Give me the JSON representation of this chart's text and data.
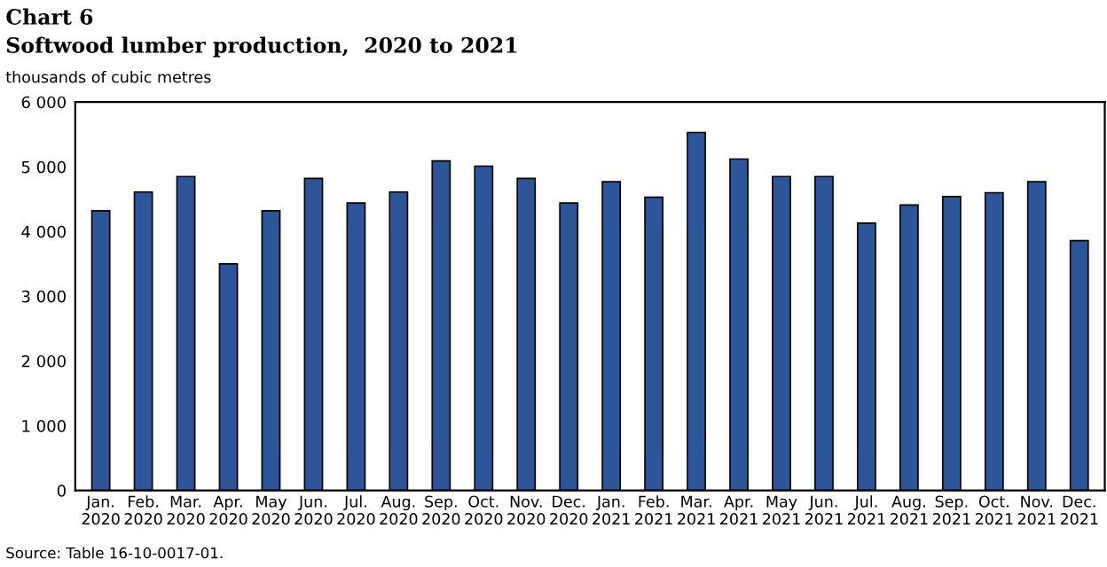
{
  "chart_data": {
    "type": "bar",
    "title": "Chart 6",
    "subtitle": "Softwood lumber production,  2020 to 2021",
    "ylabel": "thousands of cubic metres",
    "categories": [
      "Jan.\n2020",
      "Feb.\n2020",
      "Mar.\n2020",
      "Apr.\n2020",
      "May\n2020",
      "Jun.\n2020",
      "Jul.\n2020",
      "Aug.\n2020",
      "Sep.\n2020",
      "Oct.\n2020",
      "Nov.\n2020",
      "Dec.\n2020",
      "Jan.\n2021",
      "Feb.\n2021",
      "Mar.\n2021",
      "Apr.\n2021",
      "May\n2021",
      "Jun.\n2021",
      "Jul.\n2021",
      "Aug.\n2021",
      "Sep.\n2021",
      "Oct.\n2021",
      "Nov.\n2021",
      "Dec.\n2021"
    ],
    "values": [
      4320,
      4610,
      4850,
      3500,
      4320,
      4820,
      4440,
      4610,
      5090,
      5010,
      4820,
      4440,
      4770,
      4530,
      5530,
      5120,
      4850,
      4850,
      4130,
      4410,
      4540,
      4600,
      4770,
      3860
    ],
    "color": "#2e5597",
    "ylim": [
      0,
      6000
    ],
    "yticks": [
      0,
      {
        "value": 1000,
        "label": "1 000"
      },
      {
        "value": 2000,
        "label": "2 000"
      },
      {
        "value": 3000,
        "label": "3 000"
      },
      {
        "value": 4000,
        "label": "4 000"
      },
      {
        "value": 5000,
        "label": "5 000"
      },
      {
        "value": 6000,
        "label": "6 000"
      }
    ],
    "grid": false,
    "annotations": [
      "Source: Table 16-10-0017-01."
    ]
  }
}
